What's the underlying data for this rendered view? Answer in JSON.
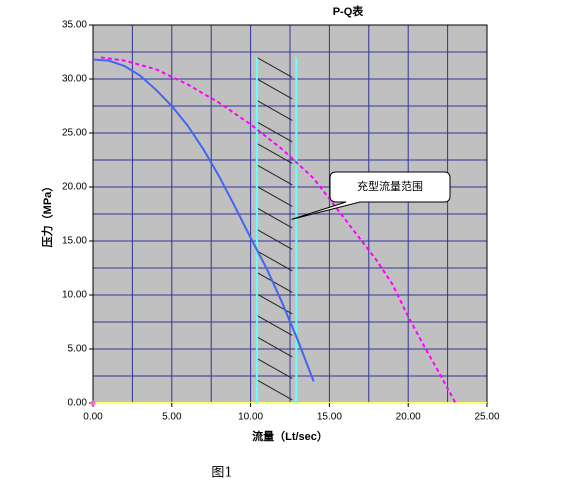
{
  "chart_data": {
    "type": "line",
    "title": "P-Q表",
    "x_label": "流量（Lt/sec）",
    "y_label": "压力（MPa）",
    "caption": "图1",
    "xlim": [
      0,
      25
    ],
    "ylim": [
      0,
      35
    ],
    "xticks": [
      {
        "value": 0,
        "label": "0.00"
      },
      {
        "value": 5,
        "label": "5.00"
      },
      {
        "value": 10,
        "label": "10.00"
      },
      {
        "value": 15,
        "label": "15.00"
      },
      {
        "value": 20,
        "label": "20.00"
      },
      {
        "value": 25,
        "label": "25.00"
      }
    ],
    "yticks": [
      {
        "value": 0,
        "label": "0.00"
      },
      {
        "value": 5,
        "label": "5.00"
      },
      {
        "value": 10,
        "label": "10.00"
      },
      {
        "value": 15,
        "label": "15.00"
      },
      {
        "value": 20,
        "label": "20.00"
      },
      {
        "value": 25,
        "label": "25.00"
      },
      {
        "value": 30,
        "label": "30.00"
      },
      {
        "value": 35,
        "label": "35.00"
      }
    ],
    "x_grid": [
      2.5,
      5,
      7.5,
      10,
      12.5,
      15,
      17.5,
      20,
      22.5
    ],
    "y_grid": [
      2.5,
      5,
      7.5,
      10,
      12.5,
      15,
      17.5,
      20,
      22.5,
      25,
      27.5,
      30,
      32.5
    ],
    "grid_color": "#333399",
    "background": "#c0c0c0",
    "series": [
      {
        "color": "#4466ee",
        "dashed": false,
        "x": [
          0,
          1,
          2,
          3,
          4,
          5,
          6,
          7,
          8,
          9,
          10,
          11,
          12,
          13,
          14
        ],
        "values": [
          31.8,
          31.7,
          31.2,
          30.3,
          29.0,
          27.5,
          25.7,
          23.5,
          21.0,
          18.2,
          15.3,
          12.5,
          9.3,
          5.8,
          2.0
        ]
      },
      {
        "color": "#ff00ff",
        "dashed": true,
        "x": [
          0.5,
          2,
          4,
          6,
          8,
          10,
          12,
          14,
          16,
          18,
          19,
          20,
          21,
          22,
          23
        ],
        "values": [
          32.0,
          31.7,
          30.9,
          29.5,
          27.8,
          25.8,
          23.5,
          20.8,
          17.0,
          13.2,
          11.0,
          8.0,
          5.3,
          2.7,
          0
        ]
      }
    ],
    "range": {
      "values": [
        10.4,
        12.9
      ],
      "top": 32,
      "color": "#66ffff"
    },
    "annotation": {
      "text": "充型流量范围",
      "x": 12.6,
      "y": 17
    }
  }
}
